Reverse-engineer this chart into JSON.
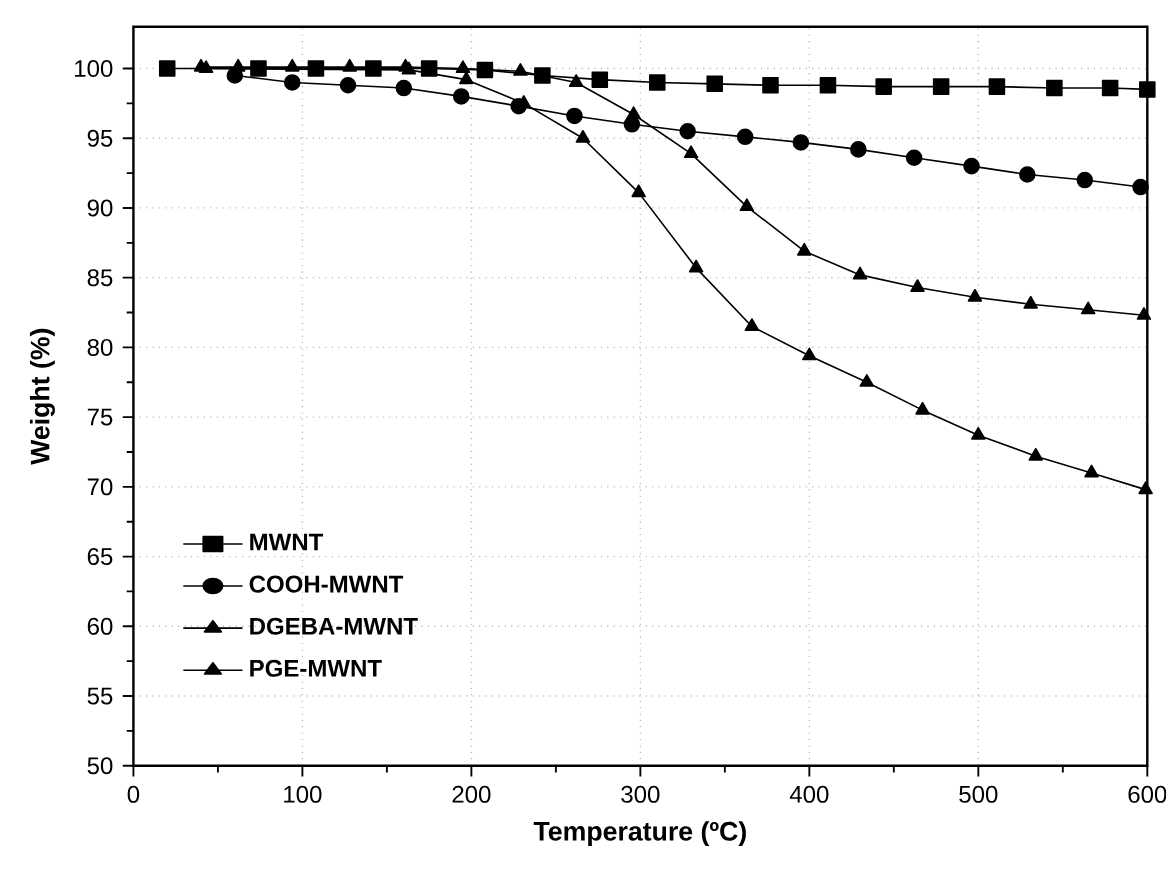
{
  "chart_data": {
    "type": "line",
    "xlabel": "Temperature (ºC)",
    "ylabel": "Weight  (%)",
    "xlim": [
      0,
      600
    ],
    "xticks": [
      0,
      100,
      200,
      300,
      400,
      500,
      600
    ],
    "ylim": [
      50,
      103
    ],
    "yticks": [
      50,
      55,
      60,
      65,
      70,
      75,
      80,
      85,
      90,
      95,
      100
    ],
    "grid": true,
    "legend": "bottom left",
    "line_style": "solid",
    "series": [
      {
        "name": "MWNT",
        "color": "#000000",
        "marker": "square",
        "x": [
          20,
          74,
          108,
          142,
          175,
          208,
          242,
          276,
          310,
          344,
          377,
          411,
          444,
          478,
          511,
          545,
          578,
          600
        ],
        "values": [
          100.0,
          100.0,
          100.0,
          100.0,
          100.0,
          99.9,
          99.5,
          99.2,
          99.0,
          98.9,
          98.8,
          98.8,
          98.7,
          98.7,
          98.7,
          98.6,
          98.6,
          98.5
        ]
      },
      {
        "name": "COOH-MWNT",
        "color": "#000000",
        "marker": "circle",
        "x": [
          60,
          94,
          127,
          160,
          194,
          228,
          261,
          295,
          328,
          362,
          395,
          429,
          462,
          496,
          529,
          563,
          596
        ],
        "values": [
          99.5,
          99.0,
          98.8,
          98.6,
          98.0,
          97.3,
          96.6,
          96.0,
          95.5,
          95.1,
          94.7,
          94.2,
          93.6,
          93.0,
          92.4,
          92.0,
          91.5
        ]
      },
      {
        "name": "DGEBA-MWNT",
        "color": "#000000",
        "marker": "triangle",
        "x": [
          40,
          62,
          94,
          128,
          161,
          195,
          229,
          262,
          296,
          330,
          363,
          397,
          430,
          464,
          498,
          531,
          565,
          598
        ],
        "values": [
          100.1,
          100.1,
          100.1,
          100.1,
          100.1,
          100.0,
          99.8,
          99.0,
          96.7,
          93.9,
          90.1,
          86.9,
          85.2,
          84.3,
          83.6,
          83.1,
          82.7,
          82.3
        ]
      },
      {
        "name": "PGE-MWNT",
        "color": "#000000",
        "marker": "triangle",
        "x": [
          43,
          163,
          197,
          231,
          266,
          299,
          333,
          366,
          400,
          434,
          467,
          500,
          534,
          567,
          599
        ],
        "values": [
          100.0,
          99.9,
          99.2,
          97.5,
          95.0,
          91.1,
          85.7,
          81.5,
          79.4,
          77.5,
          75.5,
          73.7,
          72.2,
          71.0,
          69.8
        ]
      }
    ]
  }
}
